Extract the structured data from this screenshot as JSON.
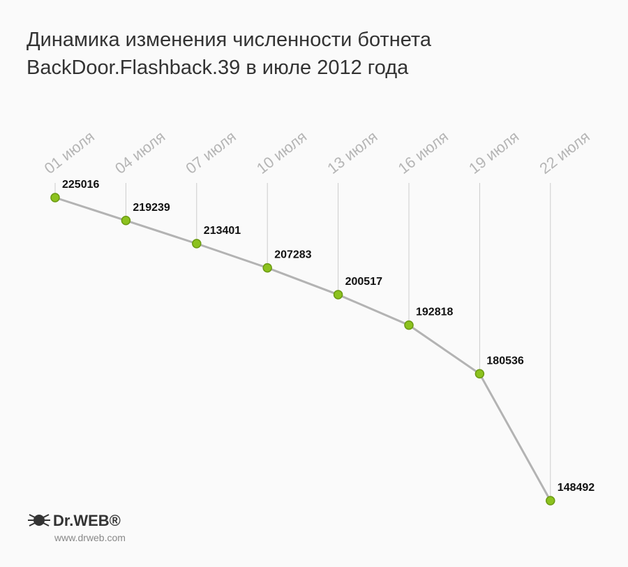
{
  "chart_data": {
    "type": "line",
    "title": [
      "Динамика изменения численности ботнета",
      "BackDoor.Flashback.39 в июле 2012 года"
    ],
    "categories": [
      "01 июля",
      "04 июля",
      "07 июля",
      "10 июля",
      "13 июля",
      "16 июля",
      "19 июля",
      "22 июля"
    ],
    "values": [
      225016,
      219239,
      213401,
      207283,
      200517,
      192818,
      180536,
      148492
    ],
    "color": "#8cc21e",
    "line_color": "#b3b3b3",
    "logo": "Dr.WEB®",
    "website": "www.drweb.com"
  }
}
